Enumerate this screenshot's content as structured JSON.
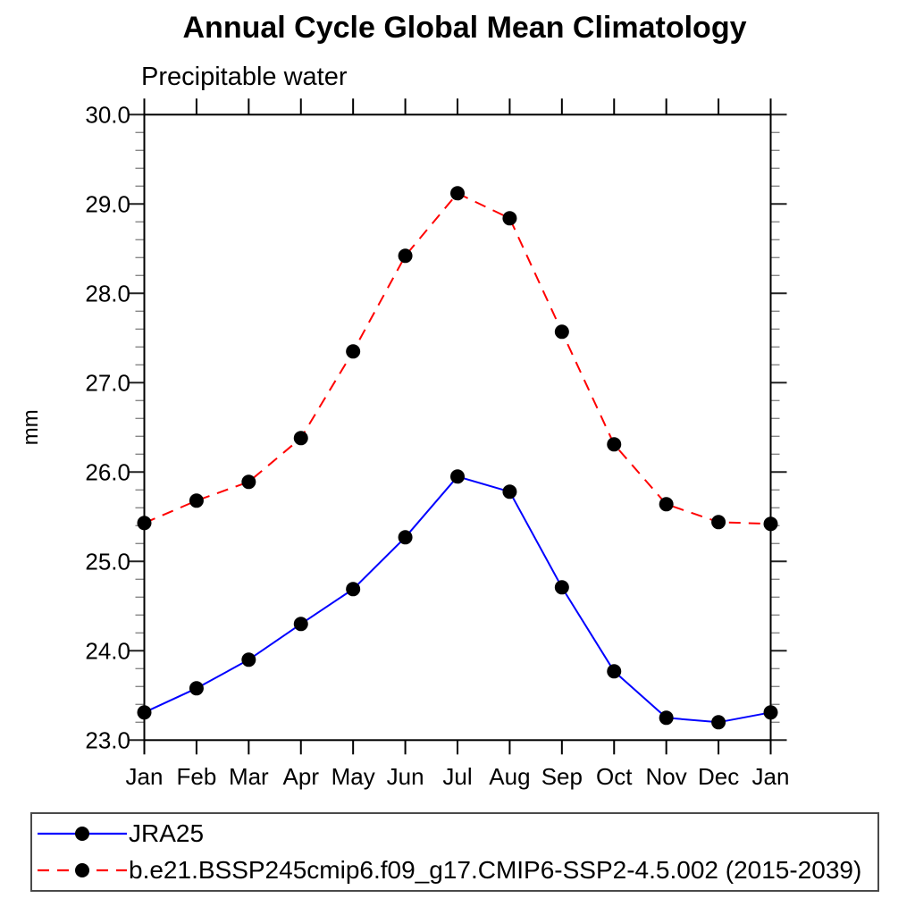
{
  "header": {
    "title": "Annual Cycle Global Mean Climatology",
    "subtitle": "Precipitable water"
  },
  "chart_data": {
    "type": "line",
    "title": "Annual Cycle Global Mean Climatology",
    "subtitle": "Precipitable water",
    "xlabel": "",
    "ylabel": "mm",
    "categories": [
      "Jan",
      "Feb",
      "Mar",
      "Apr",
      "May",
      "Jun",
      "Jul",
      "Aug",
      "Sep",
      "Oct",
      "Nov",
      "Dec",
      "Jan"
    ],
    "ylim": [
      23.0,
      30.0
    ],
    "ytick_interval": 1.0,
    "ytick_minor_interval": 0.2,
    "ytick_label_format": "one_decimal",
    "grid": false,
    "frame_color": "#000000",
    "legend_position": "bottom-left-box",
    "series": [
      {
        "name": "JRA25",
        "color": "#0000ff",
        "line_style": "solid",
        "marker": "filled-circle",
        "marker_color": "#000000",
        "values": [
          23.31,
          23.58,
          23.9,
          24.3,
          24.69,
          25.27,
          25.95,
          25.78,
          24.71,
          23.77,
          23.25,
          23.2,
          23.31
        ]
      },
      {
        "name": "b.e21.BSSP245cmip6.f09_g17.CMIP6-SSP2-4.5.002 (2015-2039)",
        "color": "#ff0000",
        "line_style": "dashed",
        "marker": "filled-circle",
        "marker_color": "#000000",
        "values": [
          25.43,
          25.68,
          25.89,
          26.38,
          27.35,
          28.42,
          29.12,
          28.84,
          27.57,
          26.31,
          25.64,
          25.44,
          25.42
        ]
      }
    ]
  }
}
